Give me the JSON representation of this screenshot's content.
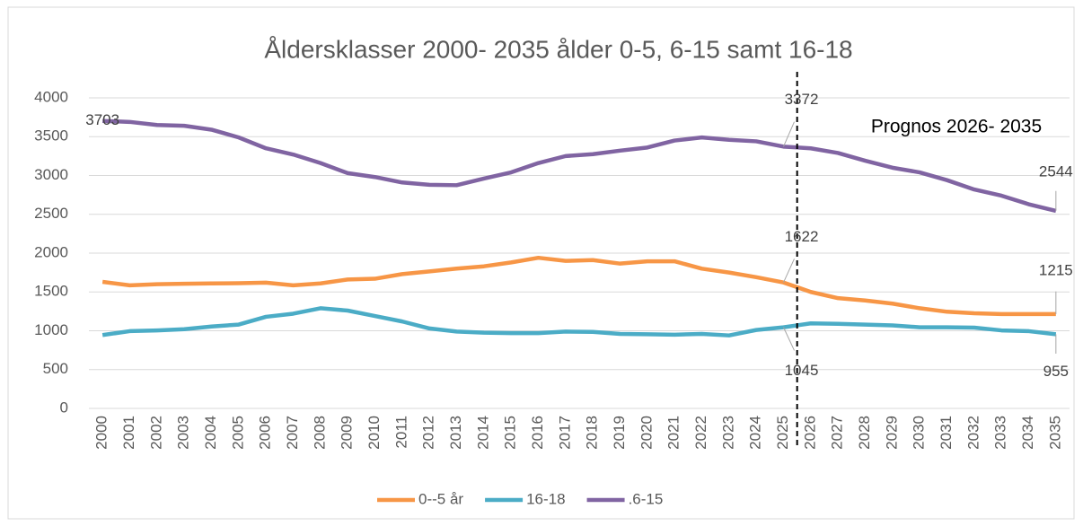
{
  "chart_data": {
    "type": "line",
    "title": "Åldersklasser 2000- 2035 ålder 0-5, 6-15 samt 16-18",
    "annotation": "Prognos 2026- 2035",
    "categories": [
      "2000",
      "2001",
      "2002",
      "2003",
      "2004",
      "2005",
      "2006",
      "2007",
      "2008",
      "2009",
      "2010",
      "2011",
      "2012",
      "2013",
      "2014",
      "2015",
      "2016",
      "2017",
      "2018",
      "2019",
      "2020",
      "2021",
      "2022",
      "2023",
      "2024",
      "2025",
      "2026",
      "2027",
      "2028",
      "2029",
      "2030",
      "2031",
      "2032",
      "2033",
      "2034",
      "2035"
    ],
    "series": [
      {
        "name": "0--5 år",
        "color": "#f79646",
        "values": [
          1630,
          1585,
          1600,
          1605,
          1610,
          1612,
          1620,
          1585,
          1610,
          1660,
          1670,
          1730,
          1765,
          1800,
          1830,
          1880,
          1940,
          1900,
          1910,
          1865,
          1895,
          1895,
          1800,
          1750,
          1690,
          1622,
          1500,
          1420,
          1390,
          1350,
          1290,
          1245,
          1225,
          1215,
          1215,
          1215
        ]
      },
      {
        "name": "16-18",
        "color": "#4bacc6",
        "values": [
          945,
          995,
          1005,
          1020,
          1055,
          1080,
          1180,
          1220,
          1290,
          1260,
          1190,
          1120,
          1030,
          990,
          975,
          970,
          970,
          990,
          985,
          960,
          955,
          950,
          960,
          940,
          1010,
          1045,
          1095,
          1090,
          1080,
          1070,
          1045,
          1045,
          1040,
          1005,
          995,
          955
        ]
      },
      {
        "name": ".6-15",
        "color": "#8064a2",
        "values": [
          3703,
          3690,
          3650,
          3640,
          3590,
          3490,
          3350,
          3270,
          3160,
          3030,
          2980,
          2910,
          2880,
          2875,
          2960,
          3040,
          3160,
          3250,
          3275,
          3320,
          3360,
          3450,
          3490,
          3460,
          3440,
          3372,
          3350,
          3290,
          3190,
          3100,
          3040,
          2940,
          2820,
          2740,
          2630,
          2544
        ]
      }
    ],
    "ylim": [
      0,
      4000
    ],
    "yticks": [
      0,
      500,
      1000,
      1500,
      2000,
      2500,
      3000,
      3500,
      4000
    ],
    "grid": true,
    "legend": "bottom"
  }
}
